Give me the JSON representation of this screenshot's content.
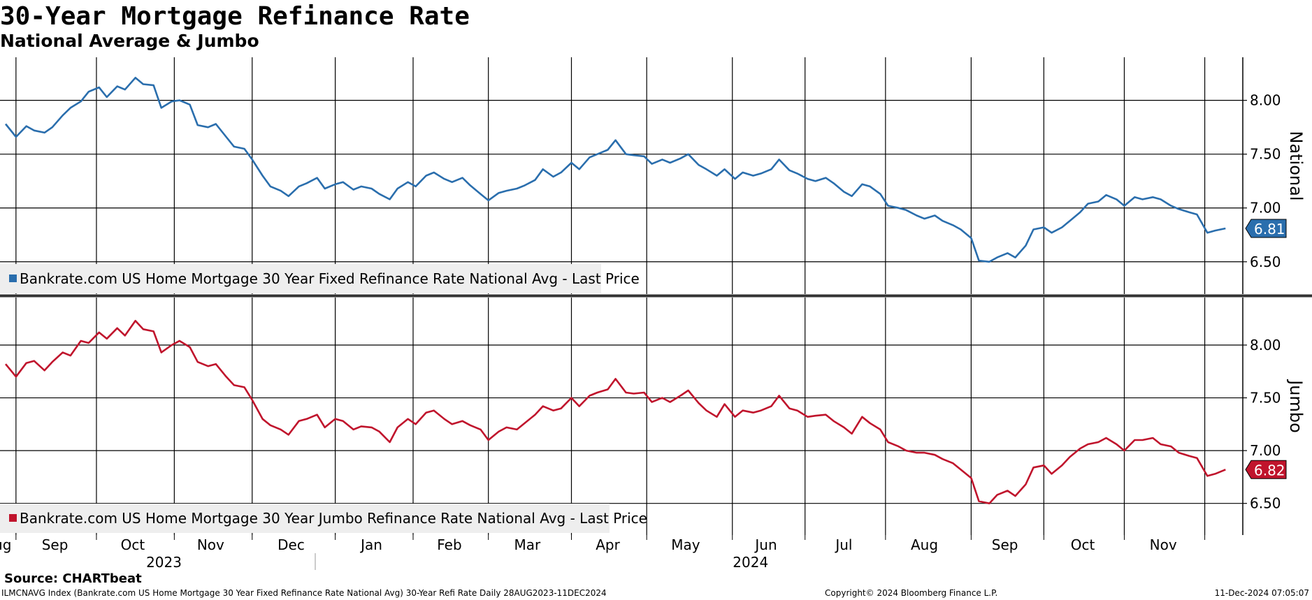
{
  "title": "30-Year Mortgage Refinance Rate",
  "subtitle": "National Average & Jumbo",
  "footer": {
    "source": "Source: CHARTbeat",
    "meta": "ILMCNAVG Index (Bankrate.com US Home Mortgage 30 Year Fixed Refinance Rate National Avg) 30-Year Refi Rate  Daily 28AUG2023-11DEC2024",
    "copyright": "Copyright© 2024 Bloomberg Finance L.P.",
    "timestamp": "11-Dec-2024 07:05:07"
  },
  "colors": {
    "national": "#2a6ead",
    "jumbo": "#c0142c",
    "grid": "#000000",
    "legend_bg": "#eeeeee"
  },
  "chart_data": [
    {
      "type": "line",
      "name": "national",
      "axis_title": "National",
      "legend": "Bankrate.com US Home Mortgage 30 Year Fixed Refinance Rate National Avg - Last Price",
      "last_value_label": "6.81",
      "ylim": [
        6.2,
        8.4
      ],
      "yticks": [
        "8.00",
        "7.50",
        "7.00",
        "6.50"
      ],
      "ytick_values": [
        8.0,
        7.5,
        7.0,
        6.5
      ],
      "grid": true,
      "points": [
        [
          "2023-08-28",
          7.78
        ],
        [
          "2023-09-01",
          7.66
        ],
        [
          "2023-09-05",
          7.76
        ],
        [
          "2023-09-08",
          7.72
        ],
        [
          "2023-09-12",
          7.7
        ],
        [
          "2023-09-15",
          7.75
        ],
        [
          "2023-09-19",
          7.86
        ],
        [
          "2023-09-22",
          7.93
        ],
        [
          "2023-09-26",
          7.99
        ],
        [
          "2023-09-29",
          8.08
        ],
        [
          "2023-10-03",
          8.12
        ],
        [
          "2023-10-06",
          8.03
        ],
        [
          "2023-10-10",
          8.13
        ],
        [
          "2023-10-13",
          8.1
        ],
        [
          "2023-10-17",
          8.21
        ],
        [
          "2023-10-20",
          8.15
        ],
        [
          "2023-10-24",
          8.14
        ],
        [
          "2023-10-27",
          7.93
        ],
        [
          "2023-10-31",
          7.99
        ],
        [
          "2023-11-03",
          8.0
        ],
        [
          "2023-11-07",
          7.96
        ],
        [
          "2023-11-10",
          7.77
        ],
        [
          "2023-11-14",
          7.75
        ],
        [
          "2023-11-17",
          7.78
        ],
        [
          "2023-11-21",
          7.66
        ],
        [
          "2023-11-24",
          7.57
        ],
        [
          "2023-11-28",
          7.55
        ],
        [
          "2023-12-01",
          7.45
        ],
        [
          "2023-12-05",
          7.3
        ],
        [
          "2023-12-08",
          7.2
        ],
        [
          "2023-12-12",
          7.16
        ],
        [
          "2023-12-15",
          7.11
        ],
        [
          "2023-12-19",
          7.2
        ],
        [
          "2023-12-22",
          7.23
        ],
        [
          "2023-12-26",
          7.28
        ],
        [
          "2023-12-29",
          7.18
        ],
        [
          "2024-01-02",
          7.22
        ],
        [
          "2024-01-05",
          7.24
        ],
        [
          "2024-01-09",
          7.17
        ],
        [
          "2024-01-12",
          7.2
        ],
        [
          "2024-01-16",
          7.18
        ],
        [
          "2024-01-19",
          7.13
        ],
        [
          "2024-01-23",
          7.08
        ],
        [
          "2024-01-26",
          7.18
        ],
        [
          "2024-01-30",
          7.24
        ],
        [
          "2024-02-02",
          7.2
        ],
        [
          "2024-02-06",
          7.3
        ],
        [
          "2024-02-09",
          7.33
        ],
        [
          "2024-02-13",
          7.27
        ],
        [
          "2024-02-16",
          7.24
        ],
        [
          "2024-02-20",
          7.28
        ],
        [
          "2024-02-23",
          7.21
        ],
        [
          "2024-02-27",
          7.13
        ],
        [
          "2024-03-01",
          7.07
        ],
        [
          "2024-03-05",
          7.14
        ],
        [
          "2024-03-08",
          7.16
        ],
        [
          "2024-03-12",
          7.18
        ],
        [
          "2024-03-15",
          7.21
        ],
        [
          "2024-03-19",
          7.26
        ],
        [
          "2024-03-22",
          7.36
        ],
        [
          "2024-03-26",
          7.29
        ],
        [
          "2024-03-29",
          7.33
        ],
        [
          "2024-04-02",
          7.42
        ],
        [
          "2024-04-05",
          7.36
        ],
        [
          "2024-04-09",
          7.47
        ],
        [
          "2024-04-12",
          7.5
        ],
        [
          "2024-04-16",
          7.54
        ],
        [
          "2024-04-19",
          7.63
        ],
        [
          "2024-04-23",
          7.5
        ],
        [
          "2024-04-26",
          7.49
        ],
        [
          "2024-04-30",
          7.48
        ],
        [
          "2024-05-03",
          7.41
        ],
        [
          "2024-05-07",
          7.45
        ],
        [
          "2024-05-10",
          7.42
        ],
        [
          "2024-05-14",
          7.46
        ],
        [
          "2024-05-17",
          7.5
        ],
        [
          "2024-05-21",
          7.4
        ],
        [
          "2024-05-24",
          7.36
        ],
        [
          "2024-05-28",
          7.3
        ],
        [
          "2024-05-31",
          7.36
        ],
        [
          "2024-06-04",
          7.27
        ],
        [
          "2024-06-07",
          7.33
        ],
        [
          "2024-06-11",
          7.3
        ],
        [
          "2024-06-14",
          7.32
        ],
        [
          "2024-06-18",
          7.36
        ],
        [
          "2024-06-21",
          7.45
        ],
        [
          "2024-06-25",
          7.35
        ],
        [
          "2024-06-28",
          7.32
        ],
        [
          "2024-07-02",
          7.27
        ],
        [
          "2024-07-05",
          7.25
        ],
        [
          "2024-07-09",
          7.28
        ],
        [
          "2024-07-12",
          7.23
        ],
        [
          "2024-07-16",
          7.15
        ],
        [
          "2024-07-19",
          7.11
        ],
        [
          "2024-07-23",
          7.22
        ],
        [
          "2024-07-26",
          7.2
        ],
        [
          "2024-07-30",
          7.13
        ],
        [
          "2024-08-02",
          7.02
        ],
        [
          "2024-08-06",
          7.0
        ],
        [
          "2024-08-09",
          6.98
        ],
        [
          "2024-08-13",
          6.93
        ],
        [
          "2024-08-16",
          6.9
        ],
        [
          "2024-08-20",
          6.93
        ],
        [
          "2024-08-23",
          6.88
        ],
        [
          "2024-08-27",
          6.84
        ],
        [
          "2024-08-30",
          6.8
        ],
        [
          "2024-09-03",
          6.72
        ],
        [
          "2024-09-06",
          6.51
        ],
        [
          "2024-09-10",
          6.5
        ],
        [
          "2024-09-13",
          6.54
        ],
        [
          "2024-09-17",
          6.58
        ],
        [
          "2024-09-20",
          6.54
        ],
        [
          "2024-09-24",
          6.65
        ],
        [
          "2024-09-27",
          6.8
        ],
        [
          "2024-10-01",
          6.82
        ],
        [
          "2024-10-04",
          6.77
        ],
        [
          "2024-10-08",
          6.82
        ],
        [
          "2024-10-11",
          6.88
        ],
        [
          "2024-10-15",
          6.96
        ],
        [
          "2024-10-18",
          7.04
        ],
        [
          "2024-10-22",
          7.06
        ],
        [
          "2024-10-25",
          7.12
        ],
        [
          "2024-10-29",
          7.08
        ],
        [
          "2024-11-01",
          7.02
        ],
        [
          "2024-11-05",
          7.1
        ],
        [
          "2024-11-08",
          7.08
        ],
        [
          "2024-11-12",
          7.1
        ],
        [
          "2024-11-15",
          7.08
        ],
        [
          "2024-11-19",
          7.02
        ],
        [
          "2024-11-22",
          6.99
        ],
        [
          "2024-11-26",
          6.96
        ],
        [
          "2024-11-29",
          6.94
        ],
        [
          "2024-12-03",
          6.77
        ],
        [
          "2024-12-06",
          6.79
        ],
        [
          "2024-12-10",
          6.81
        ]
      ]
    },
    {
      "type": "line",
      "name": "jumbo",
      "axis_title": "Jumbo",
      "legend": "Bankrate.com US Home Mortgage 30 Year Jumbo Refinance Rate National Avg - Last Price",
      "last_value_label": "6.82",
      "ylim": [
        6.2,
        8.45
      ],
      "yticks": [
        "8.00",
        "7.50",
        "7.00",
        "6.50"
      ],
      "ytick_values": [
        8.0,
        7.5,
        7.0,
        6.5
      ],
      "grid": true,
      "points": [
        [
          "2023-08-28",
          7.82
        ],
        [
          "2023-09-01",
          7.7
        ],
        [
          "2023-09-05",
          7.83
        ],
        [
          "2023-09-08",
          7.85
        ],
        [
          "2023-09-12",
          7.76
        ],
        [
          "2023-09-15",
          7.84
        ],
        [
          "2023-09-19",
          7.93
        ],
        [
          "2023-09-22",
          7.9
        ],
        [
          "2023-09-26",
          8.04
        ],
        [
          "2023-09-29",
          8.02
        ],
        [
          "2023-10-03",
          8.12
        ],
        [
          "2023-10-06",
          8.06
        ],
        [
          "2023-10-10",
          8.16
        ],
        [
          "2023-10-13",
          8.09
        ],
        [
          "2023-10-17",
          8.23
        ],
        [
          "2023-10-20",
          8.15
        ],
        [
          "2023-10-24",
          8.13
        ],
        [
          "2023-10-27",
          7.93
        ],
        [
          "2023-10-31",
          8.0
        ],
        [
          "2023-11-03",
          8.04
        ],
        [
          "2023-11-07",
          7.98
        ],
        [
          "2023-11-10",
          7.84
        ],
        [
          "2023-11-14",
          7.8
        ],
        [
          "2023-11-17",
          7.82
        ],
        [
          "2023-11-21",
          7.7
        ],
        [
          "2023-11-24",
          7.62
        ],
        [
          "2023-11-28",
          7.6
        ],
        [
          "2023-12-01",
          7.48
        ],
        [
          "2023-12-05",
          7.3
        ],
        [
          "2023-12-08",
          7.24
        ],
        [
          "2023-12-12",
          7.2
        ],
        [
          "2023-12-15",
          7.15
        ],
        [
          "2023-12-19",
          7.28
        ],
        [
          "2023-12-22",
          7.3
        ],
        [
          "2023-12-26",
          7.34
        ],
        [
          "2023-12-29",
          7.22
        ],
        [
          "2024-01-02",
          7.3
        ],
        [
          "2024-01-05",
          7.28
        ],
        [
          "2024-01-09",
          7.2
        ],
        [
          "2024-01-12",
          7.23
        ],
        [
          "2024-01-16",
          7.22
        ],
        [
          "2024-01-19",
          7.18
        ],
        [
          "2024-01-23",
          7.08
        ],
        [
          "2024-01-26",
          7.22
        ],
        [
          "2024-01-30",
          7.3
        ],
        [
          "2024-02-02",
          7.25
        ],
        [
          "2024-02-06",
          7.36
        ],
        [
          "2024-02-09",
          7.38
        ],
        [
          "2024-02-13",
          7.3
        ],
        [
          "2024-02-16",
          7.25
        ],
        [
          "2024-02-20",
          7.28
        ],
        [
          "2024-02-23",
          7.24
        ],
        [
          "2024-02-27",
          7.2
        ],
        [
          "2024-03-01",
          7.1
        ],
        [
          "2024-03-05",
          7.18
        ],
        [
          "2024-03-08",
          7.22
        ],
        [
          "2024-03-12",
          7.2
        ],
        [
          "2024-03-15",
          7.26
        ],
        [
          "2024-03-19",
          7.34
        ],
        [
          "2024-03-22",
          7.42
        ],
        [
          "2024-03-26",
          7.38
        ],
        [
          "2024-03-29",
          7.4
        ],
        [
          "2024-04-02",
          7.5
        ],
        [
          "2024-04-05",
          7.42
        ],
        [
          "2024-04-09",
          7.52
        ],
        [
          "2024-04-12",
          7.55
        ],
        [
          "2024-04-16",
          7.58
        ],
        [
          "2024-04-19",
          7.68
        ],
        [
          "2024-04-23",
          7.55
        ],
        [
          "2024-04-26",
          7.54
        ],
        [
          "2024-04-30",
          7.55
        ],
        [
          "2024-05-03",
          7.46
        ],
        [
          "2024-05-07",
          7.5
        ],
        [
          "2024-05-10",
          7.46
        ],
        [
          "2024-05-14",
          7.52
        ],
        [
          "2024-05-17",
          7.57
        ],
        [
          "2024-05-21",
          7.45
        ],
        [
          "2024-05-24",
          7.38
        ],
        [
          "2024-05-28",
          7.32
        ],
        [
          "2024-05-31",
          7.44
        ],
        [
          "2024-06-04",
          7.32
        ],
        [
          "2024-06-07",
          7.38
        ],
        [
          "2024-06-11",
          7.36
        ],
        [
          "2024-06-14",
          7.38
        ],
        [
          "2024-06-18",
          7.42
        ],
        [
          "2024-06-21",
          7.52
        ],
        [
          "2024-06-25",
          7.4
        ],
        [
          "2024-06-28",
          7.38
        ],
        [
          "2024-07-02",
          7.32
        ],
        [
          "2024-07-05",
          7.33
        ],
        [
          "2024-07-09",
          7.34
        ],
        [
          "2024-07-12",
          7.28
        ],
        [
          "2024-07-16",
          7.22
        ],
        [
          "2024-07-19",
          7.16
        ],
        [
          "2024-07-23",
          7.32
        ],
        [
          "2024-07-26",
          7.26
        ],
        [
          "2024-07-30",
          7.2
        ],
        [
          "2024-08-02",
          7.08
        ],
        [
          "2024-08-06",
          7.04
        ],
        [
          "2024-08-09",
          7.0
        ],
        [
          "2024-08-13",
          6.98
        ],
        [
          "2024-08-16",
          6.98
        ],
        [
          "2024-08-20",
          6.96
        ],
        [
          "2024-08-23",
          6.92
        ],
        [
          "2024-08-27",
          6.88
        ],
        [
          "2024-08-30",
          6.82
        ],
        [
          "2024-09-03",
          6.74
        ],
        [
          "2024-09-06",
          6.52
        ],
        [
          "2024-09-10",
          6.5
        ],
        [
          "2024-09-13",
          6.58
        ],
        [
          "2024-09-17",
          6.62
        ],
        [
          "2024-09-20",
          6.57
        ],
        [
          "2024-09-24",
          6.68
        ],
        [
          "2024-09-27",
          6.84
        ],
        [
          "2024-10-01",
          6.86
        ],
        [
          "2024-10-04",
          6.78
        ],
        [
          "2024-10-08",
          6.86
        ],
        [
          "2024-10-11",
          6.94
        ],
        [
          "2024-10-15",
          7.02
        ],
        [
          "2024-10-18",
          7.06
        ],
        [
          "2024-10-22",
          7.08
        ],
        [
          "2024-10-25",
          7.12
        ],
        [
          "2024-10-29",
          7.06
        ],
        [
          "2024-11-01",
          7.0
        ],
        [
          "2024-11-05",
          7.1
        ],
        [
          "2024-11-08",
          7.1
        ],
        [
          "2024-11-12",
          7.12
        ],
        [
          "2024-11-15",
          7.06
        ],
        [
          "2024-11-19",
          7.04
        ],
        [
          "2024-11-22",
          6.98
        ],
        [
          "2024-11-26",
          6.95
        ],
        [
          "2024-11-29",
          6.93
        ],
        [
          "2024-12-03",
          6.76
        ],
        [
          "2024-12-06",
          6.78
        ],
        [
          "2024-12-10",
          6.82
        ]
      ]
    }
  ],
  "x_axis": {
    "month_labels": [
      {
        "label": "Aug",
        "date": "2023-08-25"
      },
      {
        "label": "Sep",
        "date": "2023-09-16"
      },
      {
        "label": "Oct",
        "date": "2023-10-16"
      },
      {
        "label": "Nov",
        "date": "2023-11-15"
      },
      {
        "label": "Dec",
        "date": "2023-12-16"
      },
      {
        "label": "Jan",
        "date": "2024-01-16"
      },
      {
        "label": "Feb",
        "date": "2024-02-15"
      },
      {
        "label": "Mar",
        "date": "2024-03-16"
      },
      {
        "label": "Apr",
        "date": "2024-04-16"
      },
      {
        "label": "May",
        "date": "2024-05-16"
      },
      {
        "label": "Jun",
        "date": "2024-06-16"
      },
      {
        "label": "Jul",
        "date": "2024-07-16"
      },
      {
        "label": "Aug",
        "date": "2024-08-16"
      },
      {
        "label": "Sep",
        "date": "2024-09-16"
      },
      {
        "label": "Oct",
        "date": "2024-10-16"
      },
      {
        "label": "Nov",
        "date": "2024-11-16"
      }
    ],
    "year_labels": [
      {
        "label": "2023",
        "date": "2023-10-28"
      },
      {
        "label": "2024",
        "date": "2024-06-10"
      }
    ],
    "gridline_dates": [
      "2023-09-01",
      "2023-10-02",
      "2023-11-01",
      "2023-12-01",
      "2024-01-02",
      "2024-02-01",
      "2024-03-01",
      "2024-04-02",
      "2024-05-01",
      "2024-06-03",
      "2024-07-01",
      "2024-08-01",
      "2024-09-03",
      "2024-10-01",
      "2024-11-01",
      "2024-12-02"
    ],
    "range": [
      "2023-08-28",
      "2024-12-11"
    ]
  }
}
